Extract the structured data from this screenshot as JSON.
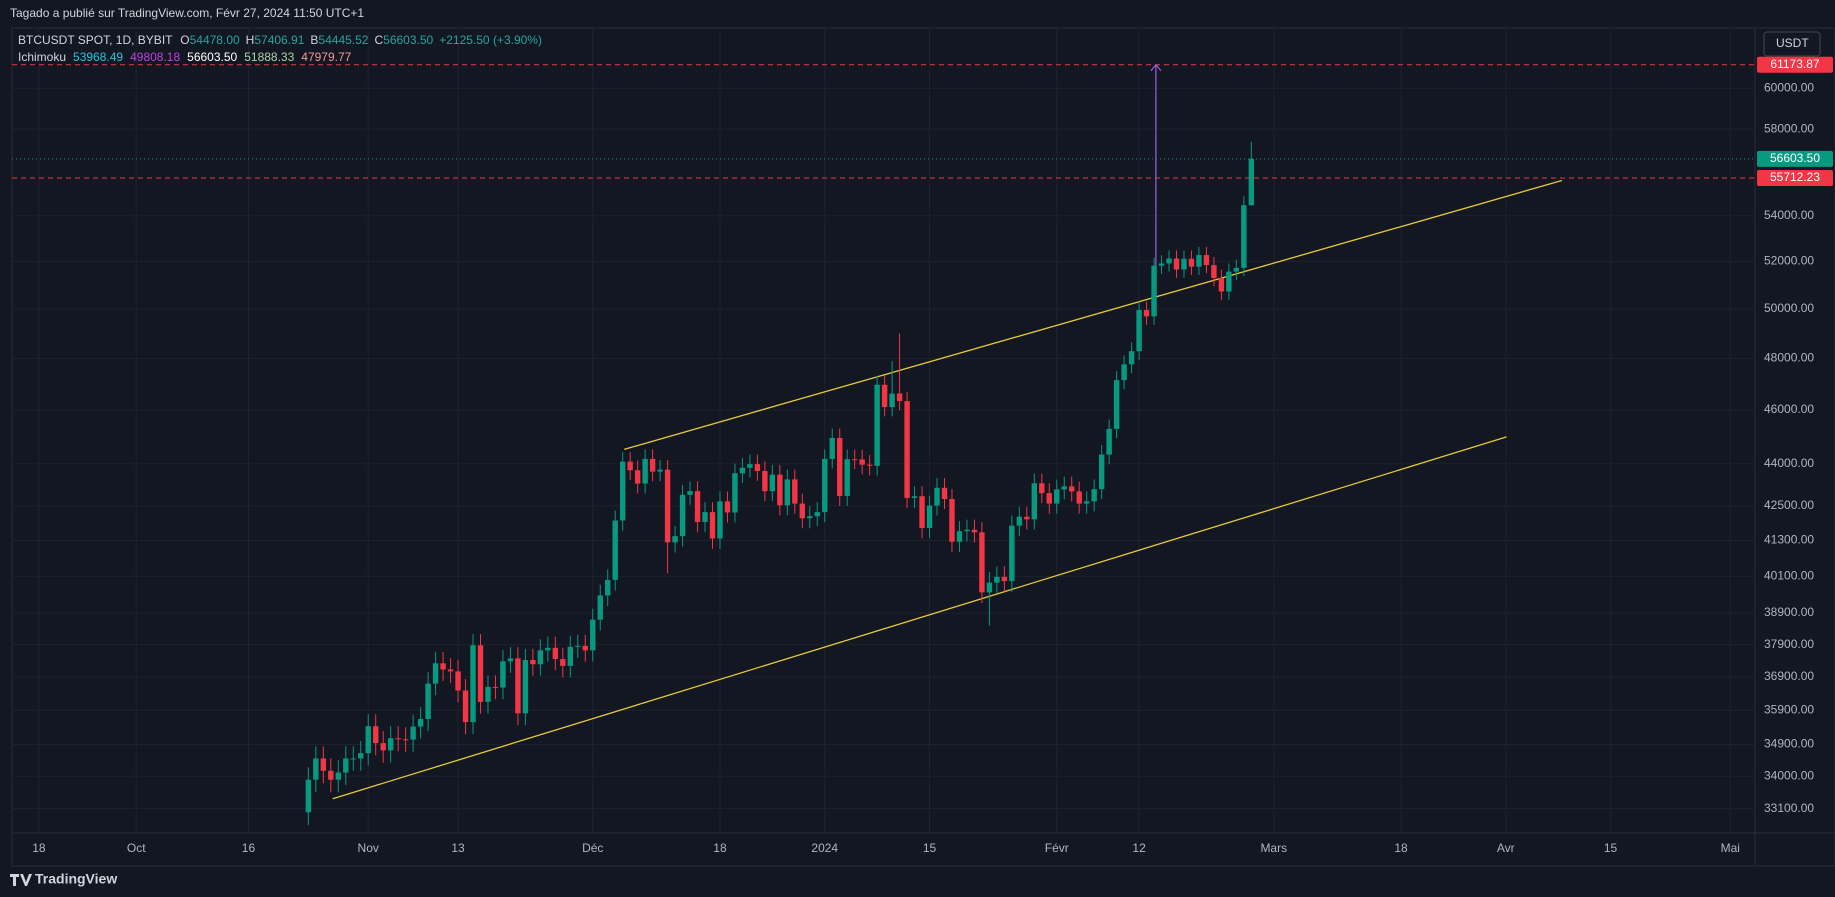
{
  "chart_data": {
    "type": "candlestick",
    "header": "Tagado a publié sur TradingView.com, Févr 27, 2024 11:50 UTC+1",
    "legend": {
      "symbol": "BTCUSDT SPOT, 1D, BYBIT",
      "items": [
        {
          "key": "O",
          "value": "54478.00"
        },
        {
          "key": "H",
          "value": "57406.91"
        },
        {
          "key": "B",
          "value": "54445.52"
        },
        {
          "key": "C",
          "value": "56603.50"
        }
      ],
      "change": "+2125.50 (+3.90%)",
      "color": "#26a69a"
    },
    "indicator": {
      "name": "Ichimoku",
      "values": [
        {
          "text": "53968.49",
          "color": "#26c6da"
        },
        {
          "text": "49808.18",
          "color": "#c042e0"
        },
        {
          "text": "56603.50",
          "color": "#ffffff"
        },
        {
          "text": "51888.33",
          "color": "#a5d6a7"
        },
        {
          "text": "47979.77",
          "color": "#ef9a9a"
        }
      ]
    },
    "currency": "USDT",
    "footer": "TradingView",
    "log_scale": true,
    "grid": true,
    "up_color": "#089981",
    "down_color": "#f23645",
    "xlim": [
      -16.6,
      216.3
    ],
    "ylim": [
      32440,
      63060
    ],
    "xticks": [
      {
        "value": -13,
        "label": "18"
      },
      {
        "value": 0,
        "label": "Oct"
      },
      {
        "value": 15,
        "label": "16"
      },
      {
        "value": 31,
        "label": "Nov"
      },
      {
        "value": 43,
        "label": "13"
      },
      {
        "value": 61,
        "label": "Déc"
      },
      {
        "value": 78,
        "label": "18"
      },
      {
        "value": 92,
        "label": "2024"
      },
      {
        "value": 106,
        "label": "15"
      },
      {
        "value": 123,
        "label": "Févr"
      },
      {
        "value": 134,
        "label": "12"
      },
      {
        "value": 152,
        "label": "Mars"
      },
      {
        "value": 169,
        "label": "18"
      },
      {
        "value": 183,
        "label": "Avr"
      },
      {
        "value": 197,
        "label": "15"
      },
      {
        "value": 213,
        "label": "Mai"
      }
    ],
    "yticks": [
      {
        "value": 33100,
        "label": "33100.00"
      },
      {
        "value": 34000,
        "label": "34000.00"
      },
      {
        "value": 34900,
        "label": "34900.00"
      },
      {
        "value": 35900,
        "label": "35900.00"
      },
      {
        "value": 36900,
        "label": "36900.00"
      },
      {
        "value": 37900,
        "label": "37900.00"
      },
      {
        "value": 38900,
        "label": "38900.00"
      },
      {
        "value": 40100,
        "label": "40100.00"
      },
      {
        "value": 41300,
        "label": "41300.00"
      },
      {
        "value": 42500,
        "label": "42500.00"
      },
      {
        "value": 44000,
        "label": "44000.00"
      },
      {
        "value": 46000,
        "label": "46000.00"
      },
      {
        "value": 48000,
        "label": "48000.00"
      },
      {
        "value": 50000,
        "label": "50000.00"
      },
      {
        "value": 52000,
        "label": "52000.00"
      },
      {
        "value": 54000,
        "label": "54000.00"
      },
      {
        "value": 58000,
        "label": "58000.00"
      },
      {
        "value": 60000,
        "label": "60000.00"
      }
    ],
    "x": [
      23,
      24,
      25,
      26,
      27,
      28,
      29,
      30,
      31,
      32,
      33,
      34,
      35,
      36,
      37,
      38,
      39,
      40,
      41,
      42,
      43,
      44,
      45,
      46,
      47,
      48,
      49,
      50,
      51,
      52,
      53,
      54,
      55,
      56,
      57,
      58,
      59,
      60,
      61,
      62,
      63,
      64,
      65,
      66,
      67,
      68,
      69,
      70,
      71,
      72,
      73,
      74,
      75,
      76,
      77,
      78,
      79,
      80,
      81,
      82,
      83,
      84,
      85,
      86,
      87,
      88,
      89,
      90,
      91,
      92,
      93,
      94,
      95,
      96,
      97,
      98,
      99,
      100,
      101,
      102,
      103,
      104,
      105,
      106,
      107,
      108,
      109,
      110,
      111,
      112,
      113,
      114,
      115,
      116,
      117,
      118,
      119,
      120,
      121,
      122,
      123,
      124,
      125,
      126,
      127,
      128,
      129,
      130,
      131,
      132,
      133,
      134,
      135,
      136,
      137,
      138,
      139,
      140,
      141,
      142,
      143,
      144,
      145,
      146,
      147,
      148,
      149
    ],
    "open": [
      33000,
      33900,
      34500,
      34150,
      33900,
      34100,
      34500,
      34500,
      34650,
      35430,
      34940,
      34730,
      35080,
      35050,
      35040,
      35420,
      35640,
      36700,
      37320,
      37130,
      37070,
      36490,
      35550,
      37880,
      36150,
      36600,
      36580,
      37380,
      37470,
      35810,
      37420,
      37290,
      37720,
      37800,
      37450,
      37240,
      37830,
      37860,
      37720,
      38690,
      39470,
      39980,
      41990,
      44080,
      43770,
      43290,
      44180,
      43720,
      43790,
      41240,
      41450,
      42890,
      43020,
      41940,
      42280,
      41370,
      42660,
      42270,
      43660,
      43860,
      43990,
      43740,
      43020,
      43610,
      42520,
      43440,
      42580,
      42070,
      42140,
      42280,
      44180,
      44950,
      42850,
      44170,
      44160,
      43970,
      43930,
      46970,
      46110,
      46630,
      46340,
      42780,
      42840,
      41730,
      42510,
      43140,
      42740,
      41260,
      41620,
      41670,
      41580,
      39570,
      39890,
      40080,
      39940,
      41810,
      42120,
      42030,
      43300,
      42950,
      42580,
      43080,
      43190,
      43010,
      42580,
      42660,
      43090,
      44340,
      45290,
      47150,
      47770,
      48290,
      49960,
      49700,
      51820,
      51920,
      52130,
      51660,
      52120,
      51780,
      52280,
      51850,
      51300,
      50730,
      51570,
      51730,
      54478
    ],
    "high": [
      34250,
      34850,
      34850,
      34500,
      34450,
      34850,
      34850,
      35000,
      35780,
      35780,
      35290,
      35430,
      35430,
      35400,
      35770,
      35990,
      37050,
      37670,
      37670,
      37480,
      37420,
      36840,
      38230,
      38230,
      36950,
      36950,
      37730,
      37820,
      37820,
      37770,
      37770,
      38070,
      38150,
      38150,
      37800,
      38180,
      38210,
      38210,
      39040,
      39820,
      40330,
      42340,
      44430,
      44430,
      44120,
      44530,
      44530,
      44140,
      44140,
      41800,
      43240,
      43370,
      43370,
      42630,
      42630,
      43010,
      43010,
      44010,
      44210,
      44340,
      44340,
      44090,
      43960,
      43960,
      43790,
      43790,
      42930,
      42490,
      42630,
      44530,
      45300,
      45300,
      44520,
      44520,
      44510,
      44320,
      47320,
      47320,
      47900,
      49000,
      46690,
      43190,
      43190,
      42860,
      43490,
      43490,
      43090,
      41970,
      42020,
      42020,
      41930,
      40240,
      40430,
      40430,
      42160,
      42470,
      42470,
      43650,
      43650,
      43300,
      43430,
      43540,
      43540,
      43360,
      43010,
      43440,
      44690,
      45640,
      47500,
      48120,
      48640,
      50310,
      50310,
      52170,
      52270,
      52480,
      52480,
      52470,
      52470,
      52630,
      52630,
      52200,
      51650,
      51920,
      52080,
      54880,
      57406.91
    ],
    "low": [
      32650,
      33550,
      33800,
      33550,
      33550,
      33750,
      34150,
      34150,
      34300,
      34590,
      34380,
      34380,
      34700,
      34690,
      34690,
      35070,
      35290,
      36350,
      36780,
      36720,
      36140,
      35200,
      35200,
      35800,
      35800,
      36230,
      36230,
      37030,
      35460,
      35460,
      36940,
      36940,
      37370,
      37100,
      36890,
      36890,
      37480,
      37370,
      37370,
      38340,
      39120,
      39630,
      41640,
      43420,
      42940,
      42940,
      43370,
      43370,
      40200,
      40890,
      41100,
      42540,
      41590,
      41590,
      41020,
      41020,
      41920,
      41920,
      43310,
      43510,
      43390,
      42670,
      42670,
      42170,
      42170,
      42230,
      41720,
      41720,
      41790,
      41930,
      43830,
      42500,
      42500,
      43810,
      43620,
      43580,
      43580,
      45760,
      45760,
      45990,
      42430,
      42430,
      41380,
      41380,
      42160,
      42390,
      40910,
      40910,
      41270,
      41230,
      39220,
      38500,
      39540,
      39590,
      39590,
      41460,
      41680,
      41680,
      42600,
      42230,
      42230,
      42730,
      42660,
      42230,
      42230,
      42310,
      42740,
      43990,
      44940,
      46800,
      47420,
      47940,
      49350,
      49350,
      51470,
      51570,
      51310,
      51310,
      51430,
      51430,
      51500,
      50950,
      50380,
      50380,
      51220,
      51380,
      54445.52
    ],
    "close": [
      33900,
      34500,
      34150,
      33900,
      34100,
      34500,
      34500,
      34650,
      35430,
      34940,
      34730,
      35080,
      35050,
      35040,
      35420,
      35640,
      36700,
      37320,
      37130,
      37070,
      36490,
      35550,
      37880,
      36150,
      36600,
      36580,
      37380,
      37470,
      35810,
      37420,
      37290,
      37720,
      37800,
      37450,
      37240,
      37830,
      37860,
      37720,
      38690,
      39470,
      39980,
      41990,
      44080,
      43770,
      43290,
      44180,
      43720,
      43790,
      41240,
      41450,
      42890,
      43020,
      41940,
      42280,
      41370,
      42660,
      42270,
      43660,
      43860,
      43990,
      43740,
      43020,
      43610,
      42520,
      43440,
      42580,
      42070,
      42140,
      42280,
      44180,
      44950,
      42850,
      44170,
      44160,
      43970,
      43930,
      46970,
      46110,
      46630,
      46340,
      42780,
      42840,
      41730,
      42510,
      43140,
      42740,
      41260,
      41620,
      41670,
      41580,
      39570,
      39890,
      40080,
      39940,
      41810,
      42120,
      42030,
      43300,
      42950,
      42580,
      43080,
      43190,
      43010,
      42580,
      42660,
      43090,
      44340,
      45290,
      47150,
      47770,
      48290,
      49960,
      49700,
      51820,
      51920,
      52130,
      51660,
      52120,
      51780,
      52280,
      51850,
      51300,
      50730,
      51570,
      51730,
      54478,
      56603.5
    ],
    "levels": {
      "values": [
        61173.87,
        55712.23
      ],
      "color": "#f23645"
    },
    "last_price": {
      "value": 56603.5,
      "label": "56603.50",
      "color": "#089981"
    },
    "trendlines": [
      {
        "points": [
          [
            65.2,
            44530
          ],
          [
            190.5,
            55600
          ]
        ],
        "color": "#e6c937"
      },
      {
        "points": [
          [
            26.25,
            33370
          ],
          [
            183.1,
            44990
          ]
        ],
        "color": "#e6c937"
      }
    ],
    "arrow": {
      "x": 136.25,
      "from": 49830,
      "to": 61173.87,
      "color": "#9c5fe0"
    }
  }
}
